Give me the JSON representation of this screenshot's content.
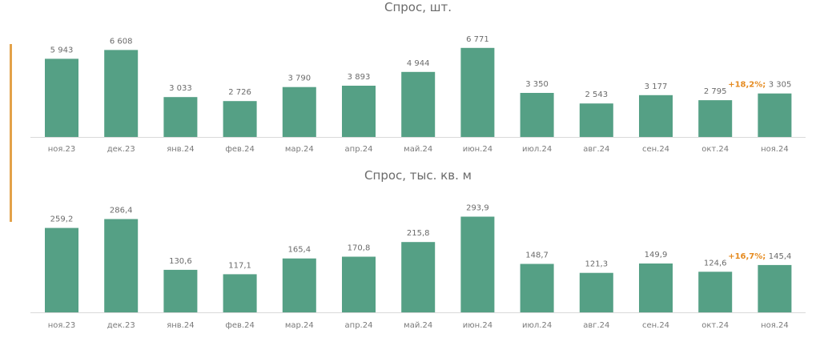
{
  "colors": {
    "bar": "#55A085",
    "axis": "#d9d9d9",
    "accent": "#E3A24A",
    "highlight": "#E58A1F"
  },
  "chart_data": [
    {
      "type": "bar",
      "title": "Спрос, шт.",
      "categories": [
        "ноя.23",
        "дек.23",
        "янв.24",
        "фев.24",
        "мар.24",
        "апр.24",
        "май.24",
        "июн.24",
        "июл.24",
        "авг.24",
        "сен.24",
        "окт.24",
        "ноя.24"
      ],
      "values": [
        5943,
        6608,
        3033,
        2726,
        3790,
        3893,
        4944,
        6771,
        3350,
        2543,
        3177,
        2795,
        3305
      ],
      "value_labels": [
        "5 943",
        "6 608",
        "3 033",
        "2 726",
        "3 790",
        "3 893",
        "4 944",
        "6 771",
        "3 350",
        "2 543",
        "3 177",
        "2 795",
        "3 305"
      ],
      "annotation": {
        "category": "ноя.24",
        "text": "+18,2%;"
      },
      "ylim": [
        0,
        7000
      ],
      "grid": false
    },
    {
      "type": "bar",
      "title": "Спрос, тыс. кв. м",
      "categories": [
        "ноя.23",
        "дек.23",
        "янв.24",
        "фев.24",
        "мар.24",
        "апр.24",
        "май.24",
        "июн.24",
        "июл.24",
        "авг.24",
        "сен.24",
        "окт.24",
        "ноя.24"
      ],
      "values": [
        259.2,
        286.4,
        130.6,
        117.1,
        165.4,
        170.8,
        215.8,
        293.9,
        148.7,
        121.3,
        149.9,
        124.6,
        145.4
      ],
      "value_labels": [
        "259,2",
        "286,4",
        "130,6",
        "117,1",
        "165,4",
        "170,8",
        "215,8",
        "293,9",
        "148,7",
        "121,3",
        "149,9",
        "124,6",
        "145,4"
      ],
      "annotation": {
        "category": "ноя.24",
        "text": "+16,7%;"
      },
      "ylim": [
        0,
        300
      ],
      "grid": false
    }
  ]
}
